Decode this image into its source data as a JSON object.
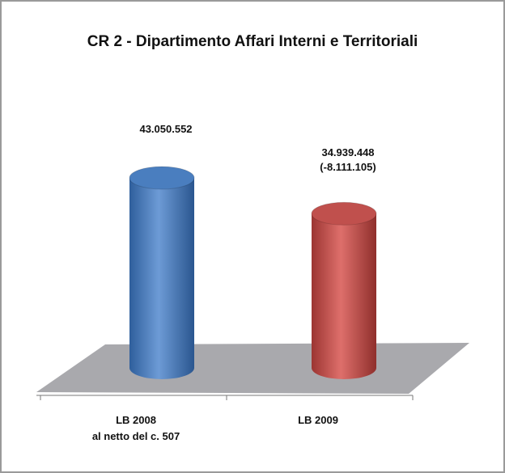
{
  "chart_data": {
    "type": "bar",
    "title": "CR 2 - Dipartimento Affari Interni e Territoriali",
    "categories": [
      "LB 2008\nal netto del c. 507",
      "LB 2009"
    ],
    "values": [
      43050552,
      34939448
    ],
    "value_labels": [
      "43.050.552",
      "34.939.448"
    ],
    "annotations": [
      "(-8.111.105)"
    ],
    "colors": [
      "#4a7ebf",
      "#c0504d"
    ]
  }
}
